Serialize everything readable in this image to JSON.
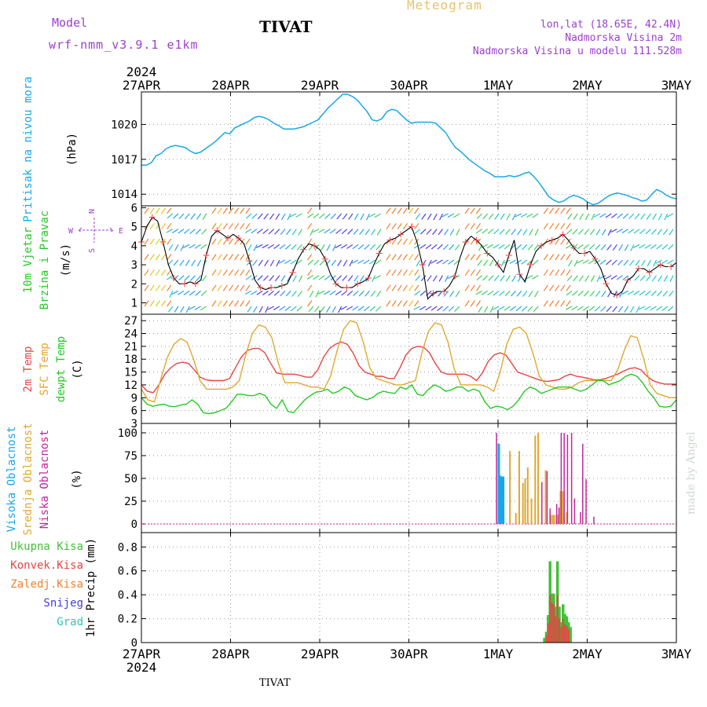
{
  "header": {
    "model_label": "Model",
    "model_name": "wrf-nmm_v3.9.1 e1km",
    "place": "TIVAT",
    "title": "Meteogram",
    "lonlat": "lon,lat (18.65E, 42.4N)",
    "elev": "Nadmorska Visina 2m",
    "elev_model": "Nadmorska Visina u modelu 111.528m"
  },
  "footer": {
    "place": "TIVAT",
    "watermark": "made by Angel"
  },
  "colors": {
    "pressure": "#1aa7e8",
    "temp2m": "#e84545",
    "sfc": "#e0a830",
    "dewpt": "#28c828",
    "high_cloud": "#1aa7e8",
    "mid_cloud": "#e0a830",
    "low_cloud": "#c0289a",
    "total_precip": "#44c03a",
    "conv_precip": "#e84545",
    "frz_precip": "#f08030",
    "snow": "#4040e0",
    "hail": "#2cc8b4"
  },
  "chart_data": [
    {
      "type": "line",
      "panel": "pressure",
      "ylabel": [
        "Pritisak na nivou mora",
        "(hPa)"
      ],
      "x_labels": [
        "27APR",
        "28APR",
        "29APR",
        "30APR",
        "1MAY",
        "2MAY",
        "3MAY"
      ],
      "year": "2024",
      "yticks": [
        1014,
        1017,
        1020
      ],
      "ylim": [
        1013.0,
        1022.8
      ],
      "series": [
        {
          "values": [
            1016.5,
            1016.5,
            1016.7,
            1017.3,
            1017.5,
            1017.9,
            1018.1,
            1018.2,
            1018.1,
            1018.0,
            1017.7,
            1017.5,
            1017.6,
            1017.9,
            1018.2,
            1018.5,
            1018.9,
            1019.3,
            1019.2,
            1019.7,
            1019.9,
            1020.1,
            1020.3,
            1020.6,
            1020.7,
            1020.6,
            1020.4,
            1020.1,
            1019.9,
            1019.6,
            1019.6,
            1019.6,
            1019.7,
            1019.8,
            1020.0,
            1020.2,
            1020.4,
            1020.9,
            1021.4,
            1021.8,
            1022.2,
            1022.6,
            1022.6,
            1022.4,
            1022.1,
            1021.6,
            1021.1,
            1020.4,
            1020.3,
            1020.5,
            1021.1,
            1021.3,
            1021.2,
            1020.8,
            1020.4,
            1020.1,
            1020.2,
            1020.2,
            1020.2,
            1020.2,
            1020.1,
            1019.7,
            1019.3,
            1018.6,
            1018.0,
            1017.7,
            1017.3,
            1016.9,
            1016.6,
            1016.3,
            1016.0,
            1015.8,
            1015.5,
            1015.5,
            1015.5,
            1015.6,
            1015.5,
            1015.6,
            1015.8,
            1015.9,
            1015.5,
            1015.0,
            1014.4,
            1013.8,
            1013.5,
            1013.3,
            1013.4,
            1013.7,
            1013.9,
            1013.8,
            1013.6,
            1013.3,
            1013.1,
            1013.2,
            1013.5,
            1013.8,
            1014.0,
            1014.1,
            1014.0,
            1013.9,
            1013.7,
            1013.6,
            1013.4,
            1013.5,
            1014.0,
            1014.4,
            1014.2,
            1013.9,
            1013.7,
            1013.6
          ]
        }
      ]
    },
    {
      "type": "line",
      "panel": "wind",
      "ylabel": [
        "10m Vjetar",
        "Brzina i Pravac",
        "(m/s)"
      ],
      "compass": {
        "n": "N",
        "w": "W",
        "e": "E",
        "s": "S"
      },
      "yticks": [
        1,
        2,
        3,
        4,
        5,
        6
      ],
      "ylim": [
        0.4,
        6.1
      ],
      "series": [
        {
          "values": [
            4.2,
            5.0,
            5.5,
            5.3,
            4.2,
            3.0,
            2.3,
            2.0,
            2.0,
            2.1,
            2.0,
            2.2,
            3.5,
            4.5,
            4.8,
            4.6,
            4.4,
            4.6,
            4.4,
            4.1,
            3.2,
            2.2,
            1.8,
            1.7,
            1.8,
            1.8,
            1.9,
            2.0,
            2.6,
            3.3,
            3.8,
            4.1,
            4.0,
            3.8,
            3.3,
            2.5,
            2.0,
            1.8,
            1.8,
            1.8,
            2.0,
            2.1,
            2.3,
            3.0,
            3.6,
            4.1,
            4.3,
            4.4,
            4.6,
            4.8,
            5.0,
            4.2,
            3.0,
            1.2,
            1.5,
            1.6,
            1.6,
            1.9,
            2.4,
            3.4,
            4.2,
            4.5,
            4.3,
            4.0,
            3.6,
            3.4,
            3.0,
            2.6,
            3.5,
            4.3,
            2.5,
            2.1,
            3.0,
            3.7,
            4.0,
            4.2,
            4.3,
            4.4,
            4.6,
            4.3,
            3.9,
            3.6,
            3.6,
            3.7,
            3.3,
            2.8,
            2.0,
            1.5,
            1.4,
            1.6,
            2.2,
            2.4,
            2.8,
            2.8,
            2.6,
            2.8,
            3.0,
            2.9,
            2.9,
            3.1
          ]
        }
      ]
    },
    {
      "type": "line",
      "panel": "temperature",
      "ylabel": [
        "2m Temp",
        "SFC Temp",
        "dewpt Temp",
        "(C)"
      ],
      "yticks": [
        3,
        6,
        9,
        12,
        15,
        18,
        21,
        24,
        27
      ],
      "ylim": [
        3,
        28.5
      ],
      "series": [
        {
          "name": "2m Temp",
          "values": [
            12.0,
            10.5,
            10.2,
            12.0,
            14.5,
            16.0,
            17.0,
            17.3,
            17.0,
            15.5,
            13.8,
            13.2,
            13.0,
            13.0,
            13.0,
            13.5,
            16.0,
            18.5,
            20.0,
            20.5,
            20.5,
            19.5,
            17.0,
            14.8,
            14.5,
            14.5,
            14.5,
            14.2,
            13.8,
            13.8,
            15.5,
            18.5,
            20.5,
            21.5,
            22.0,
            21.5,
            19.5,
            16.5,
            15.0,
            14.5,
            14.0,
            14.0,
            13.5,
            13.5,
            16.0,
            19.0,
            20.5,
            21.0,
            20.8,
            19.5,
            17.0,
            15.0,
            14.5,
            14.5,
            14.5,
            14.5,
            14.0,
            13.0,
            14.8,
            17.5,
            19.0,
            19.5,
            19.0,
            17.0,
            15.0,
            14.5,
            14.0,
            13.5,
            13.0,
            12.8,
            13.0,
            13.2,
            14.0,
            14.5,
            14.0,
            13.8,
            13.5,
            13.2,
            13.2,
            13.5,
            14.0,
            14.5,
            15.2,
            15.8,
            16.0,
            15.5,
            14.0,
            13.0,
            12.5,
            12.2,
            12.2,
            12.2
          ]
        },
        {
          "name": "SFC Temp",
          "values": [
            11.0,
            8.5,
            8.0,
            13.5,
            18.5,
            21.5,
            22.8,
            22.0,
            18.0,
            13.0,
            11.0,
            11.0,
            11.0,
            11.0,
            11.5,
            13.0,
            19.0,
            24.0,
            26.0,
            25.5,
            23.0,
            17.0,
            12.5,
            12.5,
            12.5,
            12.0,
            11.5,
            11.5,
            11.0,
            14.0,
            20.0,
            25.0,
            27.0,
            26.5,
            22.0,
            16.0,
            13.5,
            13.0,
            12.5,
            12.0,
            12.0,
            12.5,
            13.0,
            19.5,
            24.5,
            26.5,
            26.0,
            22.0,
            15.5,
            12.0,
            12.0,
            12.0,
            12.0,
            11.5,
            10.5,
            15.0,
            21.5,
            25.0,
            25.5,
            24.0,
            19.5,
            14.0,
            12.0,
            11.5,
            11.0,
            11.0,
            11.5,
            12.5,
            13.0,
            13.0,
            13.0,
            13.0,
            13.0,
            15.5,
            20.0,
            23.5,
            23.0,
            18.0,
            12.0,
            10.0,
            9.5,
            9.0,
            9.0
          ]
        },
        {
          "name": "dewpt Temp",
          "values": [
            9.0,
            7.5,
            7.0,
            7.3,
            7.5,
            7.0,
            6.9,
            7.3,
            7.5,
            8.5,
            7.5,
            5.5,
            5.3,
            5.5,
            6.0,
            6.5,
            8.0,
            9.8,
            9.8,
            9.5,
            9.5,
            10.0,
            9.5,
            7.5,
            6.5,
            8.5,
            5.8,
            5.5,
            7.0,
            8.5,
            9.5,
            10.3,
            10.5,
            11.0,
            10.0,
            10.5,
            11.5,
            11.0,
            9.5,
            9.0,
            8.5,
            9.0,
            10.0,
            10.5,
            10.2,
            10.0,
            11.5,
            11.0,
            12.0,
            9.8,
            9.5,
            11.0,
            12.0,
            11.5,
            10.5,
            10.8,
            11.5,
            11.5,
            10.5,
            11.0,
            10.5,
            8.0,
            6.5,
            7.0,
            6.8,
            6.2,
            7.0,
            8.5,
            10.5,
            11.5,
            11.0,
            10.0,
            10.5,
            11.0,
            11.5,
            11.5,
            11.5,
            11.0,
            10.5,
            11.0,
            12.0,
            13.0,
            13.0,
            12.0,
            12.5,
            13.0,
            14.0,
            14.5,
            14.0,
            12.5,
            10.5,
            9.0,
            7.0,
            6.8,
            7.0,
            8.5
          ]
        }
      ]
    },
    {
      "type": "bar",
      "panel": "cloud",
      "ylabel": [
        "Visoka Oblacnost",
        "Srednja Oblacnost",
        "Niska Oblacnost",
        "(%)"
      ],
      "yticks": [
        0,
        25,
        50,
        75,
        100
      ],
      "ylim": [
        0,
        100
      ],
      "series": [
        {
          "name": "Visoka Oblacnost",
          "values": [
            [
              96.2,
              88
            ],
            [
              96.6,
              53
            ],
            [
              97.0,
              52
            ],
            [
              97.4,
              52
            ]
          ]
        },
        {
          "name": "Srednja Oblacnost",
          "values": [
            [
              99.2,
              80
            ],
            [
              100.8,
              12
            ],
            [
              101.7,
              80
            ],
            [
              102.7,
              45
            ],
            [
              103.3,
              50
            ],
            [
              104.0,
              62
            ],
            [
              105.0,
              28
            ],
            [
              106.0,
              97
            ],
            [
              106.8,
              100
            ],
            [
              108.8,
              59
            ],
            [
              110.3,
              10
            ],
            [
              110.8,
              10
            ],
            [
              111.3,
              10
            ],
            [
              112.2,
              10
            ],
            [
              112.8,
              36
            ],
            [
              113.4,
              36
            ],
            [
              113.8,
              12
            ],
            [
              114.5,
              13
            ]
          ]
        },
        {
          "name": "Niska Oblacnost",
          "values": [
            [
              95.6,
              100
            ],
            [
              107.8,
              46
            ],
            [
              109.2,
              58
            ],
            [
              110.0,
              17
            ],
            [
              111.8,
              22
            ],
            [
              112.4,
              18
            ],
            [
              113.0,
              100
            ],
            [
              113.8,
              100
            ],
            [
              114.7,
              98
            ],
            [
              115.8,
              100
            ],
            [
              116.6,
              28
            ],
            [
              118.2,
              13
            ],
            [
              118.8,
              88
            ],
            [
              119.7,
              49
            ],
            [
              121.8,
              8
            ]
          ]
        }
      ]
    },
    {
      "type": "bar",
      "panel": "precip",
      "ylabel": [
        "1hr Precip (mm)"
      ],
      "legend": [
        "Ukupna Kisa",
        "Konvek.Kisa",
        "Zaledj.Kisa",
        "Snijeg",
        "Grad"
      ],
      "yticks": [
        0,
        0.2,
        0.4,
        0.6,
        0.8
      ],
      "ylim": [
        0,
        0.92
      ],
      "series": [
        {
          "name": "Ukupna Kisa",
          "values": [
            [
              108.5,
              0.04
            ],
            [
              109.0,
              0.09
            ],
            [
              109.5,
              0.23
            ],
            [
              110.0,
              0.68
            ],
            [
              110.5,
              0.41
            ],
            [
              111.0,
              0.41
            ],
            [
              111.5,
              0.3
            ],
            [
              112.0,
              0.68
            ],
            [
              112.5,
              0.3
            ],
            [
              113.0,
              0.17
            ],
            [
              113.5,
              0.32
            ],
            [
              114.0,
              0.24
            ],
            [
              114.5,
              0.22
            ],
            [
              115.0,
              0.17
            ],
            [
              115.5,
              0.13
            ]
          ]
        },
        {
          "name": "Konvek.Kisa",
          "values": [
            [
              109.0,
              0.06
            ],
            [
              109.5,
              0.16
            ],
            [
              110.0,
              0.4
            ],
            [
              110.5,
              0.33
            ],
            [
              111.0,
              0.32
            ],
            [
              111.5,
              0.22
            ],
            [
              112.0,
              0.4
            ],
            [
              112.5,
              0.2
            ],
            [
              113.0,
              0.13
            ],
            [
              113.5,
              0.2
            ],
            [
              114.0,
              0.15
            ],
            [
              114.5,
              0.14
            ],
            [
              115.0,
              0.11
            ]
          ]
        }
      ],
      "x_labels": [
        "27APR",
        "28APR",
        "29APR",
        "30APR",
        "1MAY",
        "2MAY",
        "3MAY"
      ],
      "year": "2024"
    }
  ]
}
